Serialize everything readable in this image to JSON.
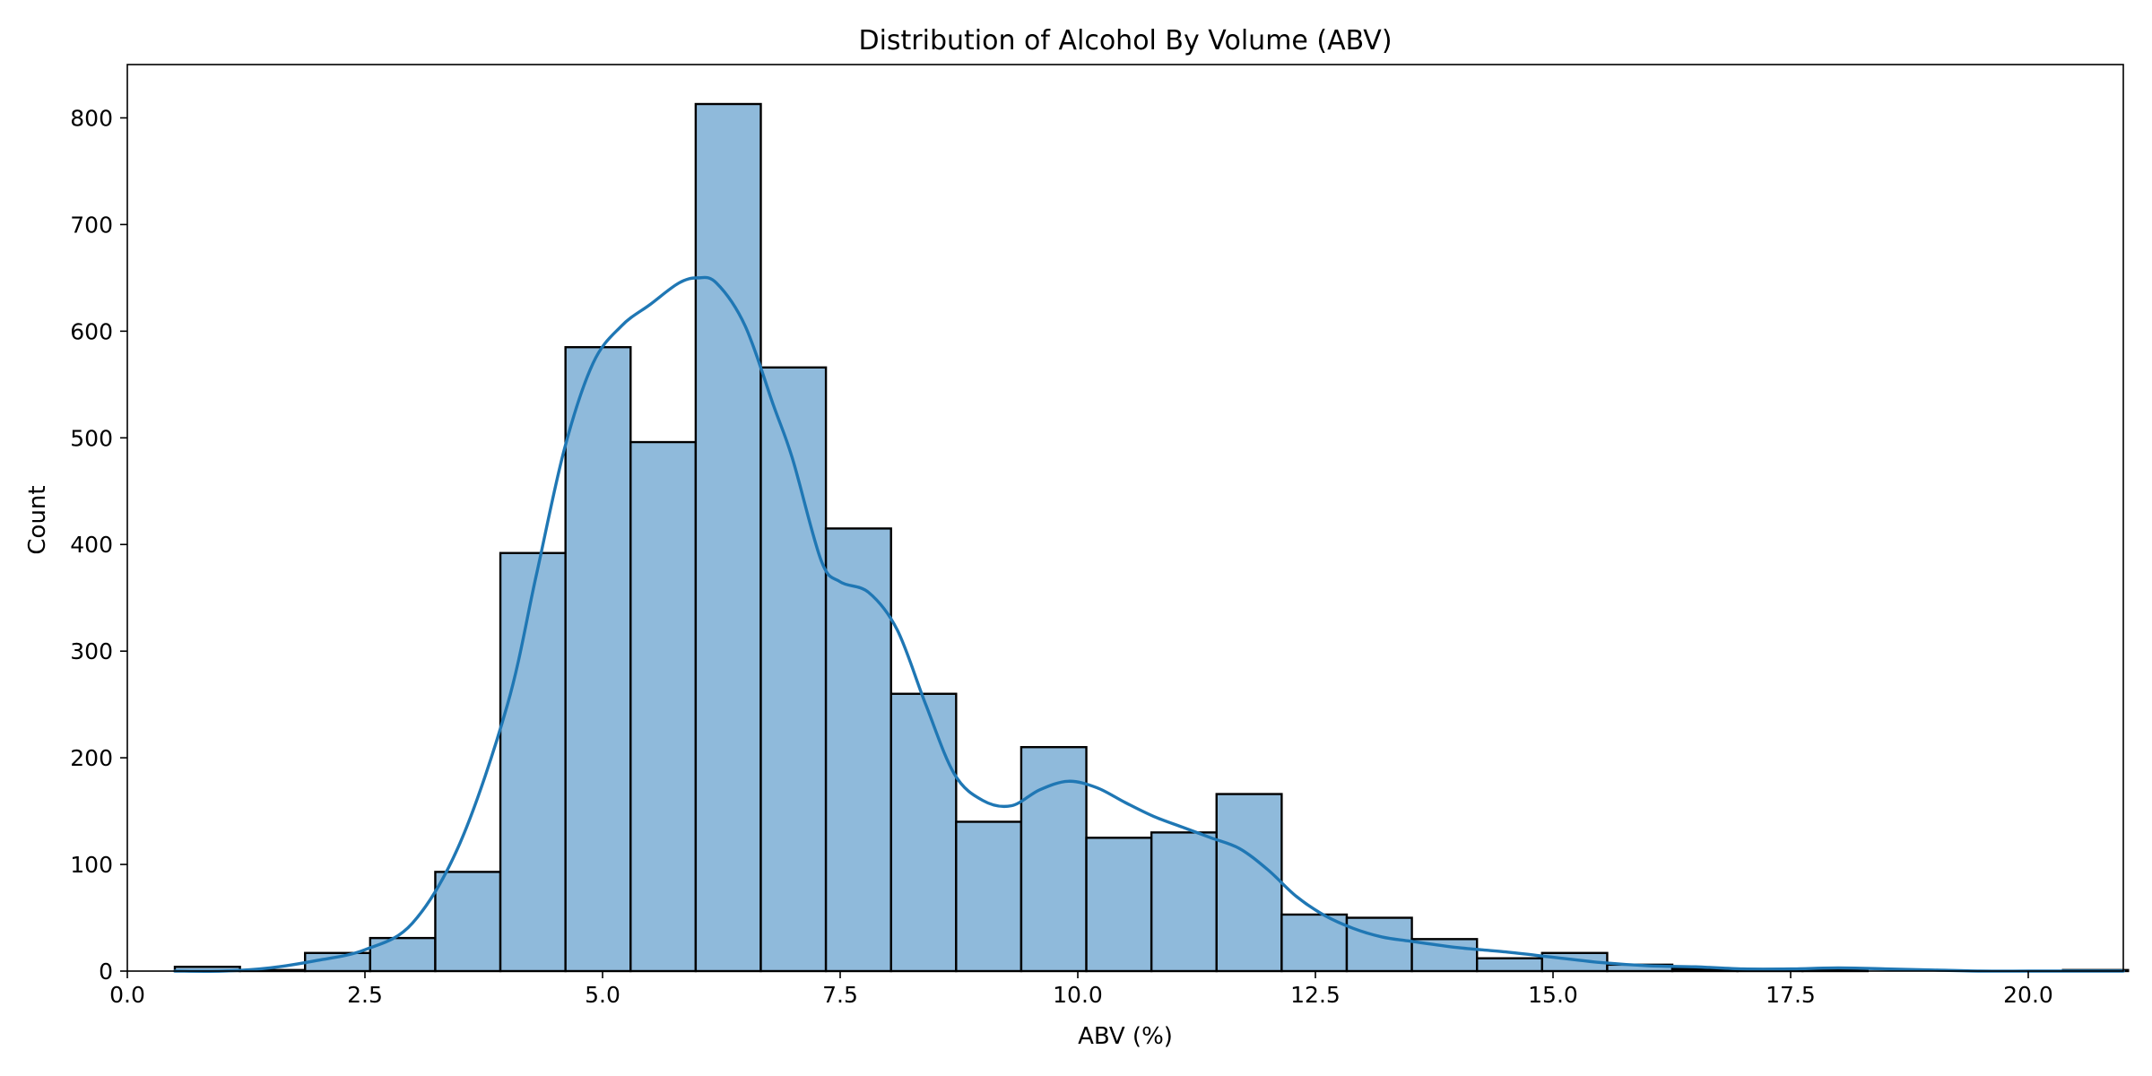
{
  "chart_data": {
    "type": "bar",
    "title": "Distribution of Alcohol By Volume (ABV)",
    "xlabel": "ABV (%)",
    "ylabel": "Count",
    "xlim": [
      0,
      21
    ],
    "ylim": [
      0,
      850
    ],
    "grid": false,
    "legend": "none",
    "xticks": [
      0.0,
      2.5,
      5.0,
      7.5,
      10.0,
      12.5,
      15.0,
      17.5,
      20.0
    ],
    "xtick_labels": [
      "0.0",
      "2.5",
      "5.0",
      "7.5",
      "10.0",
      "12.5",
      "15.0",
      "17.5",
      "20.0"
    ],
    "yticks": [
      0,
      100,
      200,
      300,
      400,
      500,
      600,
      700,
      800
    ],
    "ytick_labels": [
      "0",
      "100",
      "200",
      "300",
      "400",
      "500",
      "600",
      "700",
      "800"
    ],
    "bins": [
      {
        "x0": 0.5,
        "x1": 1.185,
        "count": 4
      },
      {
        "x0": 1.185,
        "x1": 1.87,
        "count": 1
      },
      {
        "x0": 1.87,
        "x1": 2.555,
        "count": 17
      },
      {
        "x0": 2.555,
        "x1": 3.24,
        "count": 31
      },
      {
        "x0": 3.24,
        "x1": 3.925,
        "count": 93
      },
      {
        "x0": 3.925,
        "x1": 4.61,
        "count": 392
      },
      {
        "x0": 4.61,
        "x1": 5.295,
        "count": 585
      },
      {
        "x0": 5.295,
        "x1": 5.98,
        "count": 496
      },
      {
        "x0": 5.98,
        "x1": 6.665,
        "count": 813
      },
      {
        "x0": 6.665,
        "x1": 7.35,
        "count": 566
      },
      {
        "x0": 7.35,
        "x1": 8.035,
        "count": 415
      },
      {
        "x0": 8.035,
        "x1": 8.72,
        "count": 260
      },
      {
        "x0": 8.72,
        "x1": 9.405,
        "count": 140
      },
      {
        "x0": 9.405,
        "x1": 10.09,
        "count": 210
      },
      {
        "x0": 10.09,
        "x1": 10.775,
        "count": 125
      },
      {
        "x0": 10.775,
        "x1": 11.46,
        "count": 130
      },
      {
        "x0": 11.46,
        "x1": 12.145,
        "count": 166
      },
      {
        "x0": 12.145,
        "x1": 12.83,
        "count": 53
      },
      {
        "x0": 12.83,
        "x1": 13.515,
        "count": 50
      },
      {
        "x0": 13.515,
        "x1": 14.2,
        "count": 30
      },
      {
        "x0": 14.2,
        "x1": 14.885,
        "count": 12
      },
      {
        "x0": 14.885,
        "x1": 15.57,
        "count": 17
      },
      {
        "x0": 15.57,
        "x1": 16.255,
        "count": 6
      },
      {
        "x0": 16.255,
        "x1": 16.94,
        "count": 2
      },
      {
        "x0": 16.94,
        "x1": 17.625,
        "count": 1
      },
      {
        "x0": 17.625,
        "x1": 18.31,
        "count": 1
      },
      {
        "x0": 18.31,
        "x1": 18.995,
        "count": 0
      },
      {
        "x0": 18.995,
        "x1": 19.68,
        "count": 0
      },
      {
        "x0": 19.68,
        "x1": 20.365,
        "count": 0
      },
      {
        "x0": 20.365,
        "x1": 21.05,
        "count": 1
      }
    ],
    "kde": {
      "x": [
        0.5,
        1.0,
        1.5,
        2.0,
        2.5,
        3.0,
        3.5,
        4.0,
        4.3,
        4.6,
        4.9,
        5.2,
        5.5,
        5.8,
        6.0,
        6.2,
        6.5,
        6.8,
        7.0,
        7.3,
        7.5,
        7.8,
        8.1,
        8.4,
        8.7,
        9.0,
        9.3,
        9.6,
        9.9,
        10.2,
        10.5,
        10.8,
        11.1,
        11.4,
        11.7,
        12.0,
        12.3,
        12.6,
        12.9,
        13.2,
        13.5,
        14.0,
        14.5,
        15.0,
        15.5,
        16.0,
        16.5,
        17.0,
        17.5,
        18.0,
        18.5,
        19.0,
        19.5,
        20.0,
        20.5,
        21.0
      ],
      "y": [
        0,
        0,
        3,
        10,
        20,
        45,
        120,
        250,
        370,
        490,
        570,
        605,
        625,
        645,
        650,
        645,
        605,
        530,
        480,
        385,
        365,
        355,
        320,
        250,
        185,
        160,
        155,
        170,
        178,
        172,
        158,
        145,
        135,
        125,
        115,
        95,
        70,
        52,
        40,
        32,
        28,
        22,
        18,
        13,
        8,
        5,
        4,
        2,
        2,
        3,
        2,
        1,
        0,
        0,
        0,
        0
      ]
    },
    "colors": {
      "bar_fill": "#8fbadb",
      "bar_edge": "#000000",
      "kde_line": "#1f77b4"
    }
  }
}
